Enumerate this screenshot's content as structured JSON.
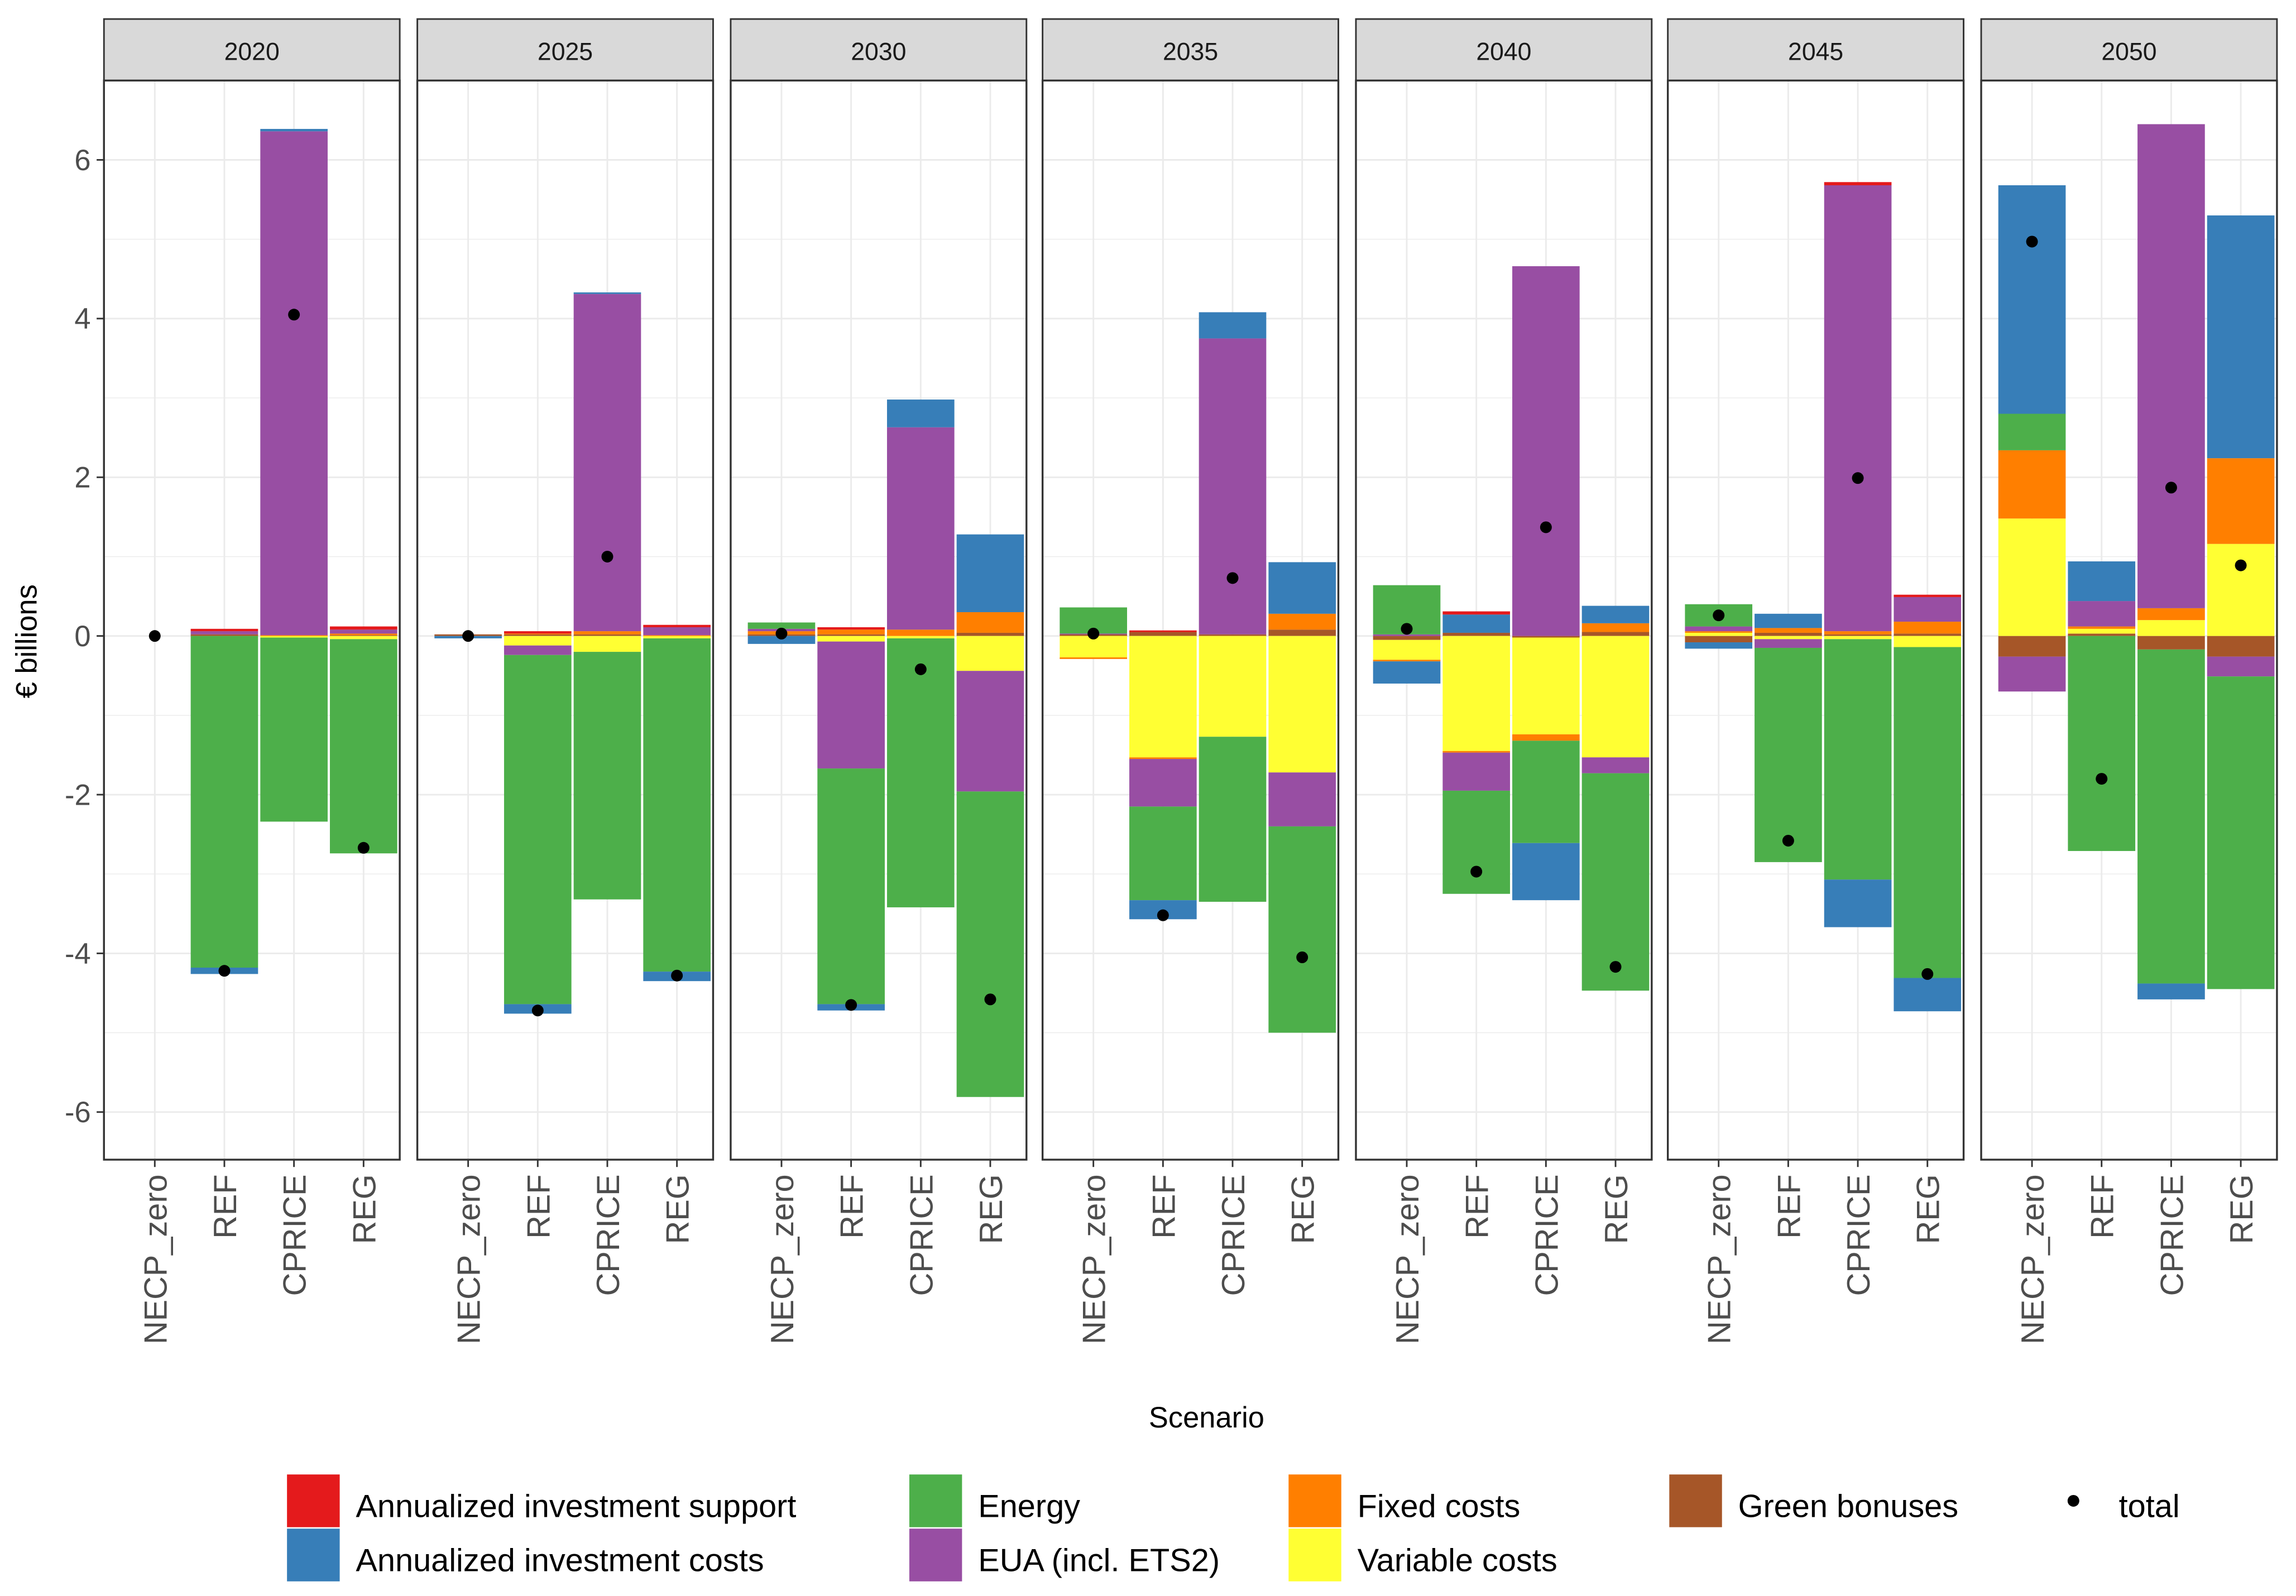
{
  "chart_data": {
    "type": "bar",
    "stacked": true,
    "faceted_by": "year",
    "title": "",
    "xlabel": "Scenario",
    "ylabel": "€ billions",
    "ylim": [
      -6.6,
      7.0
    ],
    "yticks": [
      -6,
      -4,
      -2,
      0,
      2,
      4,
      6
    ],
    "grid": true,
    "legend_position": "bottom",
    "facets": [
      "2020",
      "2025",
      "2030",
      "2035",
      "2040",
      "2045",
      "2050"
    ],
    "categories": [
      "NECP_zero",
      "REF",
      "CPRICE",
      "REG"
    ],
    "components": [
      {
        "key": "support",
        "name": "Annualized investment support",
        "color": "#e41a1c"
      },
      {
        "key": "invest",
        "name": "Annualized investment costs",
        "color": "#377eb8"
      },
      {
        "key": "energy",
        "name": "Energy",
        "color": "#4daf4a"
      },
      {
        "key": "eua",
        "name": "EUA (incl. ETS2)",
        "color": "#984ea3"
      },
      {
        "key": "fixed",
        "name": "Fixed costs",
        "color": "#ff7f00"
      },
      {
        "key": "variable",
        "name": "Variable costs",
        "color": "#ffff33"
      },
      {
        "key": "green",
        "name": "Green bonuses",
        "color": "#a65628"
      }
    ],
    "total_marker": {
      "name": "total",
      "color": "#000000"
    },
    "stack_order": [
      "support",
      "invest",
      "energy",
      "eua",
      "fixed",
      "variable",
      "green"
    ],
    "data": {
      "2020": {
        "NECP_zero": {
          "values": {
            "support": 0,
            "invest": 0,
            "energy": 0,
            "eua": 0,
            "fixed": 0,
            "variable": 0,
            "green": 0
          },
          "total": 0.0
        },
        "REF": {
          "values": {
            "support": 0.03,
            "invest": -0.08,
            "energy": -4.18,
            "eua": 0.04,
            "fixed": 0,
            "variable": 0,
            "green": 0.02
          },
          "total": -4.22
        },
        "CPRICE": {
          "values": {
            "support": 0,
            "invest": 0.03,
            "energy": -2.32,
            "eua": 6.35,
            "fixed": 0.01,
            "variable": -0.02,
            "green": 0
          },
          "total": 4.05
        },
        "REG": {
          "values": {
            "support": 0.04,
            "invest": 0,
            "energy": -2.7,
            "eua": 0.05,
            "fixed": 0.02,
            "variable": -0.04,
            "green": 0.01
          },
          "total": -2.67
        }
      },
      "2025": {
        "NECP_zero": {
          "values": {
            "support": 0,
            "invest": -0.03,
            "energy": 0,
            "eua": 0,
            "fixed": 0,
            "variable": 0,
            "green": 0.02
          },
          "total": 0.0
        },
        "REF": {
          "values": {
            "support": 0.03,
            "invest": -0.12,
            "energy": -4.4,
            "eua": -0.12,
            "fixed": 0.01,
            "variable": -0.12,
            "green": 0.02
          },
          "total": -4.72
        },
        "CPRICE": {
          "values": {
            "support": 0,
            "invest": 0.02,
            "energy": -3.12,
            "eua": 4.25,
            "fixed": 0.04,
            "variable": -0.2,
            "green": 0.02
          },
          "total": 1.0
        },
        "REG": {
          "values": {
            "support": 0.03,
            "invest": -0.12,
            "energy": -4.2,
            "eua": 0.1,
            "fixed": 0.01,
            "variable": -0.03,
            "green": 0.0
          },
          "total": -4.28
        }
      },
      "2030": {
        "NECP_zero": {
          "values": {
            "support": 0,
            "invest": -0.1,
            "energy": 0.08,
            "eua": 0.03,
            "fixed": 0.04,
            "variable": 0,
            "green": 0.02
          },
          "total": 0.03
        },
        "REF": {
          "values": {
            "support": 0.03,
            "invest": -0.08,
            "energy": -2.97,
            "eua": -1.6,
            "fixed": 0.06,
            "variable": -0.07,
            "green": 0.02
          },
          "total": -4.65
        },
        "CPRICE": {
          "values": {
            "support": 0,
            "invest": 0.35,
            "energy": -3.39,
            "eua": 2.55,
            "fixed": 0.08,
            "variable": -0.03,
            "green": 0
          },
          "total": -0.42
        },
        "REG": {
          "values": {
            "support": 0,
            "invest": 0.98,
            "energy": -3.85,
            "eua": -1.52,
            "fixed": 0.26,
            "variable": -0.44,
            "green": 0.04
          },
          "total": -4.58
        }
      },
      "2035": {
        "NECP_zero": {
          "values": {
            "support": 0,
            "invest": 0,
            "energy": 0.33,
            "eua": 0.01,
            "fixed": -0.02,
            "variable": -0.27,
            "green": 0.02
          },
          "total": 0.03
        },
        "REF": {
          "values": {
            "support": 0.02,
            "invest": -0.24,
            "energy": -1.18,
            "eua": -0.6,
            "fixed": -0.02,
            "variable": -1.53,
            "green": 0.05
          },
          "total": -3.52
        },
        "CPRICE": {
          "values": {
            "support": 0,
            "invest": 0.33,
            "energy": -2.08,
            "eua": 3.73,
            "fixed": 0,
            "variable": -1.27,
            "green": 0.02
          },
          "total": 0.73
        },
        "REG": {
          "values": {
            "support": 0,
            "invest": 0.65,
            "energy": -2.6,
            "eua": -0.68,
            "fixed": 0.2,
            "variable": -1.72,
            "green": 0.08
          },
          "total": -4.05
        }
      },
      "2040": {
        "NECP_zero": {
          "values": {
            "support": 0,
            "invest": -0.28,
            "energy": 0.62,
            "eua": 0.02,
            "fixed": -0.02,
            "variable": -0.25,
            "green": -0.05
          },
          "total": 0.09
        },
        "REF": {
          "values": {
            "support": 0.04,
            "invest": 0.23,
            "energy": -1.3,
            "eua": -0.48,
            "fixed": -0.02,
            "variable": -1.45,
            "green": 0.04
          },
          "total": -2.97
        },
        "CPRICE": {
          "values": {
            "support": 0,
            "invest": -0.72,
            "energy": -1.29,
            "eua": 4.66,
            "fixed": -0.08,
            "variable": -1.22,
            "green": -0.02
          },
          "total": 1.37
        },
        "REG": {
          "values": {
            "support": 0,
            "invest": 0.22,
            "energy": -2.74,
            "eua": -0.2,
            "fixed": 0.11,
            "variable": -1.53,
            "green": 0.05
          },
          "total": -4.17
        }
      },
      "2045": {
        "NECP_zero": {
          "values": {
            "support": 0,
            "invest": -0.08,
            "energy": 0.28,
            "eua": 0.06,
            "fixed": 0.02,
            "variable": 0.04,
            "green": -0.08
          },
          "total": 0.26
        },
        "REF": {
          "values": {
            "support": 0,
            "invest": 0.18,
            "energy": -2.7,
            "eua": -0.11,
            "fixed": 0.06,
            "variable": -0.04,
            "green": 0.04
          },
          "total": -2.58
        },
        "CPRICE": {
          "values": {
            "support": 0.04,
            "invest": -0.6,
            "energy": -3.03,
            "eua": 5.62,
            "fixed": 0.04,
            "variable": -0.04,
            "green": 0.02
          },
          "total": 1.99
        },
        "REG": {
          "values": {
            "support": 0.03,
            "invest": -0.42,
            "energy": -4.17,
            "eua": 0.31,
            "fixed": 0.15,
            "variable": -0.14,
            "green": 0.03
          },
          "total": -4.26
        }
      },
      "2050": {
        "NECP_zero": {
          "values": {
            "support": 0,
            "invest": 2.88,
            "energy": 0.46,
            "eua": -0.44,
            "fixed": 0.86,
            "variable": 1.48,
            "green": -0.26
          },
          "total": 4.97
        },
        "REF": {
          "values": {
            "support": 0,
            "invest": 0.5,
            "energy": -2.71,
            "eua": 0.32,
            "fixed": 0.03,
            "variable": 0.06,
            "green": 0.03
          },
          "total": -1.8
        },
        "CPRICE": {
          "values": {
            "support": 0,
            "invest": -0.2,
            "energy": -4.21,
            "eua": 6.1,
            "fixed": 0.15,
            "variable": 0.2,
            "green": -0.17
          },
          "total": 1.87
        },
        "REG": {
          "values": {
            "support": 0,
            "invest": 3.06,
            "energy": -3.94,
            "eua": -0.25,
            "fixed": 1.08,
            "variable": 1.16,
            "green": -0.26
          },
          "total": 0.89
        }
      }
    }
  }
}
